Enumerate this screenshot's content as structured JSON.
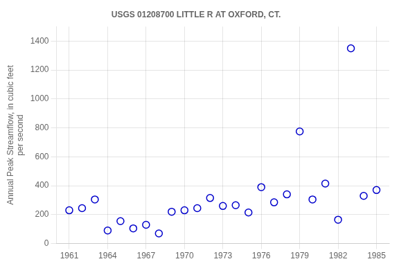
{
  "chart_data": {
    "type": "scatter",
    "title": "USGS 01208700 LITTLE R AT OXFORD, CT.",
    "ylabel": "Annual Peak Streamflow, in cubic feet\nper second",
    "x": [
      1961,
      1962,
      1963,
      1964,
      1965,
      1966,
      1967,
      1968,
      1969,
      1970,
      1971,
      1972,
      1973,
      1974,
      1975,
      1976,
      1977,
      1978,
      1979,
      1980,
      1981,
      1982,
      1983,
      1984,
      1985
    ],
    "values": [
      230,
      245,
      305,
      90,
      155,
      105,
      130,
      70,
      220,
      230,
      245,
      315,
      260,
      265,
      215,
      390,
      285,
      340,
      775,
      305,
      415,
      165,
      1350,
      330,
      370
    ],
    "xlim": [
      1960,
      1986
    ],
    "ylim": [
      0,
      1500
    ],
    "xticks": [
      1961,
      1964,
      1967,
      1970,
      1973,
      1976,
      1979,
      1982,
      1985
    ],
    "yticks": [
      0,
      200,
      400,
      600,
      800,
      1000,
      1200,
      1400
    ],
    "color": "#0000cc",
    "marker": "circle",
    "grid": true
  }
}
